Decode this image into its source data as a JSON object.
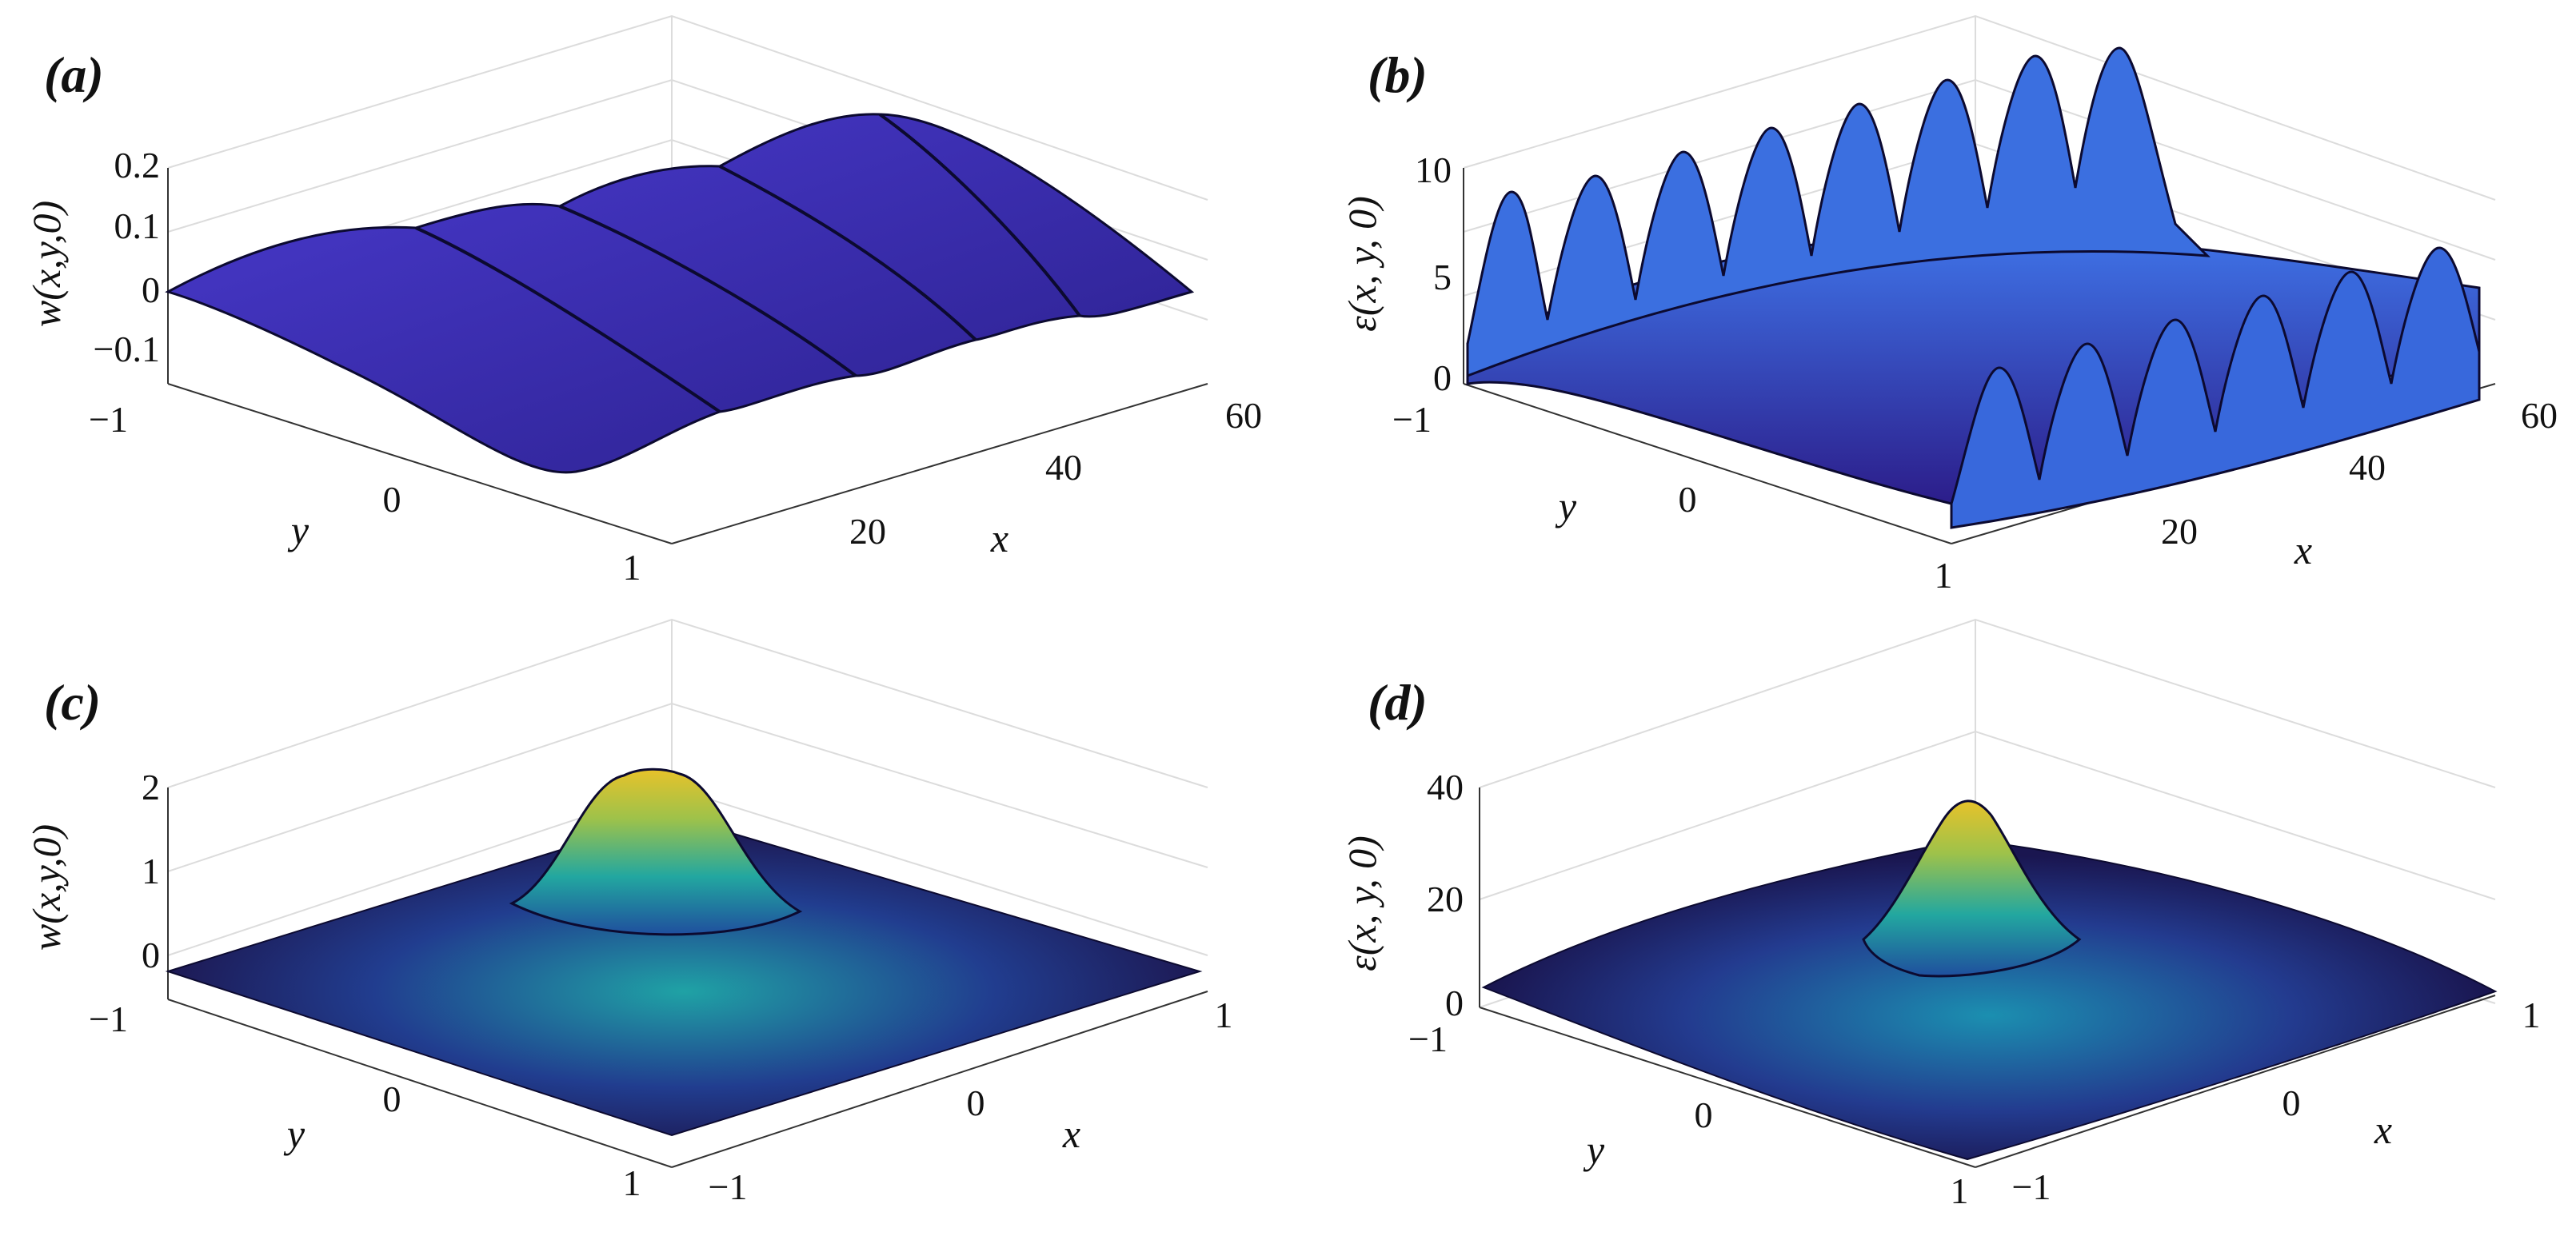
{
  "figure": {
    "panels": [
      {
        "id": "a",
        "label": "(a)"
      },
      {
        "id": "b",
        "label": "(b)"
      },
      {
        "id": "c",
        "label": "(c)"
      },
      {
        "id": "d",
        "label": "(d)"
      }
    ]
  },
  "chart_data": [
    {
      "type": "surface",
      "panel": "(a)",
      "zlabel": "w(x,y,0)",
      "xlabel": "x",
      "ylabel": "y",
      "xlim": [
        0,
        60
      ],
      "ylim": [
        -1,
        1
      ],
      "zlim": [
        -0.15,
        0.2
      ],
      "xticks": [
        "20",
        "40",
        "60"
      ],
      "yticks": [
        "−1",
        "0",
        "1"
      ],
      "zticks": [
        "0.2",
        "0.1",
        "0",
        "−0.1"
      ],
      "surface": "periodic wave along x, 4 crests, zero at y = ±1",
      "colormap": "parula",
      "grid": true
    },
    {
      "type": "surface",
      "panel": "(b)",
      "zlabel": "ε(x, y, 0)",
      "xlabel": "x",
      "ylabel": "y",
      "xlim": [
        0,
        60
      ],
      "ylim": [
        -1,
        1
      ],
      "zlim": [
        0,
        12
      ],
      "xticks": [
        "20",
        "40",
        "60"
      ],
      "yticks": [
        "−1",
        "0",
        "1"
      ],
      "zticks": [
        "10",
        "5",
        "0"
      ],
      "surface": "periodic peaks along both edges y = ±1 with peak height ~11",
      "colormap": "parula",
      "grid": true
    },
    {
      "type": "surface",
      "panel": "(c)",
      "zlabel": "w(x,y,0)",
      "xlabel": "x",
      "ylabel": "y",
      "xlim": [
        -1,
        1
      ],
      "ylim": [
        -1,
        1
      ],
      "zlim": [
        0,
        2
      ],
      "xticks": [
        "−1",
        "0",
        "1"
      ],
      "yticks": [
        "−1",
        "0",
        "1"
      ],
      "zticks": [
        "2",
        "1",
        "0"
      ],
      "surface": "single centered bump, peak ≈ 1.9 at (0,0)",
      "colormap": "parula",
      "grid": true
    },
    {
      "type": "surface",
      "panel": "(d)",
      "zlabel": "ε(x, y, 0)",
      "xlabel": "x",
      "ylabel": "y",
      "xlim": [
        -1,
        1
      ],
      "ylim": [
        -1,
        1
      ],
      "zlim": [
        0,
        40
      ],
      "xticks": [
        "−1",
        "0",
        "1"
      ],
      "yticks": [
        "−1",
        "0",
        "1"
      ],
      "zticks": [
        "40",
        "20",
        "0"
      ],
      "surface": "central peak ≈ 38 at (0,0) on a raised base",
      "colormap": "parula",
      "grid": true
    }
  ],
  "colors": {
    "surface_low": "#352a87",
    "surface_mid": "#1fa8a8",
    "surface_high": "#f9e030",
    "frame": "#dcdcdc"
  }
}
